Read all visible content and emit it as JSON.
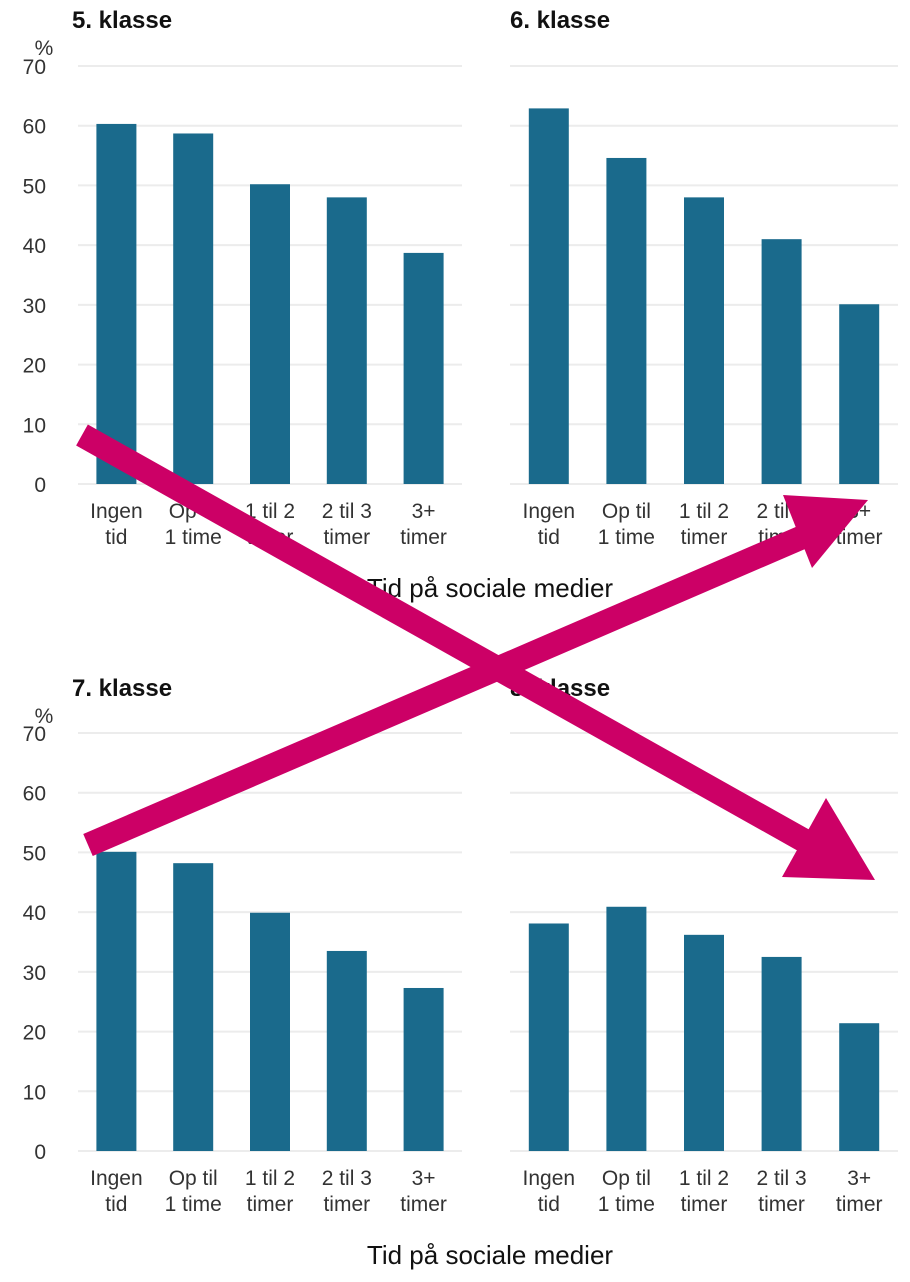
{
  "colors": {
    "bar": "#1a6a8c",
    "arrow": "#cc0066",
    "grid": "#ececec"
  },
  "chart_data": [
    {
      "type": "bar",
      "title": "5. klasse",
      "ylabel": "%",
      "ylim": [
        0,
        70
      ],
      "yticks": [
        "70",
        "60",
        "50",
        "40",
        "30",
        "20",
        "10",
        "0"
      ],
      "categories": [
        [
          "Ingen",
          "tid"
        ],
        [
          "Op til",
          "1 time"
        ],
        [
          "1 til 2",
          "timer"
        ],
        [
          "2 til 3",
          "timer"
        ],
        [
          "3+",
          "timer"
        ]
      ],
      "values": [
        60.3,
        58.7,
        50.2,
        48.0,
        38.7
      ],
      "xlabel": "Tid på sociale medier"
    },
    {
      "type": "bar",
      "title": "6. klasse",
      "ylabel": "",
      "ylim": [
        0,
        70
      ],
      "categories": [
        [
          "Ingen",
          "tid"
        ],
        [
          "Op til",
          "1 time"
        ],
        [
          "1 til 2",
          "timer"
        ],
        [
          "2 til 3",
          "timer"
        ],
        [
          "3+",
          "timer"
        ]
      ],
      "values": [
        62.9,
        54.6,
        48.0,
        41.0,
        30.1
      ],
      "xlabel": ""
    },
    {
      "type": "bar",
      "title": "7. klasse",
      "ylabel": "%",
      "ylim": [
        0,
        70
      ],
      "yticks": [
        "70",
        "60",
        "50",
        "40",
        "30",
        "20",
        "10",
        "0"
      ],
      "categories": [
        [
          "Ingen",
          "tid"
        ],
        [
          "Op til",
          "1 time"
        ],
        [
          "1 til 2",
          "timer"
        ],
        [
          "2 til 3",
          "timer"
        ],
        [
          "3+",
          "timer"
        ]
      ],
      "values": [
        50.1,
        48.2,
        39.9,
        33.5,
        27.3
      ],
      "xlabel": "Tid på sociale medier"
    },
    {
      "type": "bar",
      "title": "8. klasse",
      "ylabel": "",
      "ylim": [
        0,
        70
      ],
      "categories": [
        [
          "Ingen",
          "tid"
        ],
        [
          "Op til",
          "1 time"
        ],
        [
          "1 til 2",
          "timer"
        ],
        [
          "2 til 3",
          "timer"
        ],
        [
          "3+",
          "timer"
        ]
      ],
      "values": [
        38.1,
        40.9,
        36.2,
        32.5,
        21.4
      ],
      "xlabel": ""
    }
  ]
}
